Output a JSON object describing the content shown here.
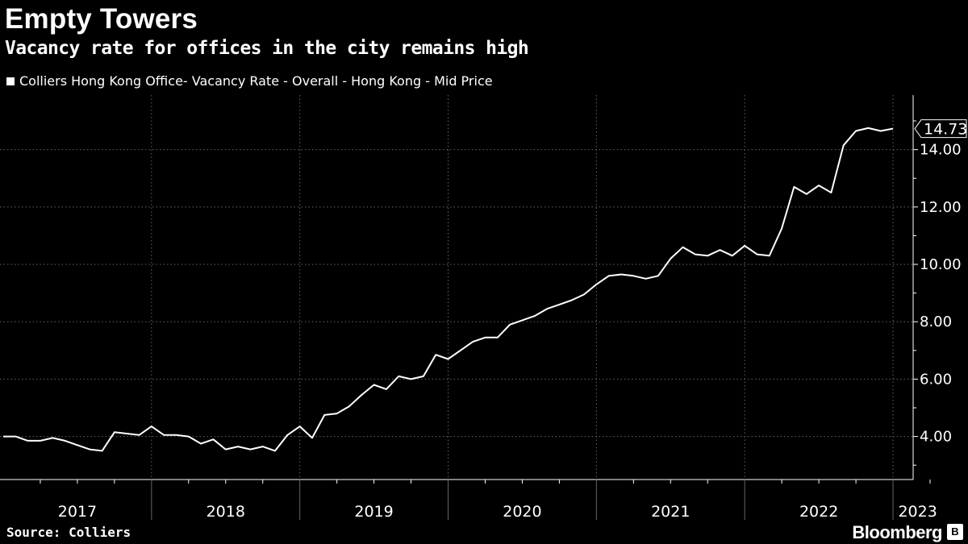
{
  "header": {
    "title": "Empty Towers",
    "subtitle": "Vacancy rate for offices in the city remains high"
  },
  "footer": {
    "source": "Source: Colliers",
    "brand": "Bloomberg"
  },
  "colors": {
    "background": "#000000",
    "line": "#ffffff",
    "grid": "#666666",
    "text": "#ffffff"
  },
  "chart_data": {
    "type": "line",
    "title": "Empty Towers",
    "subtitle": "Vacancy rate for offices in the city remains high",
    "xlabel": "",
    "ylabel": "",
    "ylim": [
      2.5,
      15.9
    ],
    "xlim": [
      2017.0,
      2023.333
    ],
    "yticks": [
      4,
      6,
      8,
      10,
      12,
      14
    ],
    "ytick_labels": [
      "4.00",
      "6.00",
      "8.00",
      "10.00",
      "12.00",
      "14.00"
    ],
    "year_labels": [
      "2017",
      "2018",
      "2019",
      "2020",
      "2021",
      "2022",
      "2023"
    ],
    "year_boundaries": [
      2018,
      2019,
      2020,
      2021,
      2022,
      2023
    ],
    "grid": true,
    "legend_position": "top-left",
    "last_value_label": "14.73",
    "series": [
      {
        "name": "Colliers Hong Kong Office- Vacancy Rate - Overall - Hong Kong - Mid Price",
        "x_start": 2017.0,
        "x_step": 0.08333,
        "values": [
          4.0,
          4.0,
          3.85,
          3.85,
          3.95,
          3.85,
          3.7,
          3.55,
          3.5,
          4.15,
          4.1,
          4.05,
          4.35,
          4.05,
          4.05,
          4.0,
          3.75,
          3.9,
          3.55,
          3.65,
          3.55,
          3.65,
          3.5,
          4.05,
          4.35,
          3.95,
          4.75,
          4.8,
          5.05,
          5.45,
          5.8,
          5.65,
          6.1,
          6.0,
          6.1,
          6.85,
          6.7,
          7.0,
          7.3,
          7.45,
          7.45,
          7.9,
          8.05,
          8.2,
          8.45,
          8.6,
          8.75,
          8.95,
          9.3,
          9.6,
          9.65,
          9.6,
          9.5,
          9.6,
          10.2,
          10.6,
          10.35,
          10.3,
          10.5,
          10.3,
          10.65,
          10.35,
          10.3,
          11.25,
          12.7,
          12.45,
          12.75,
          12.5,
          14.15,
          14.65,
          14.75,
          14.65,
          14.73
        ]
      }
    ]
  }
}
